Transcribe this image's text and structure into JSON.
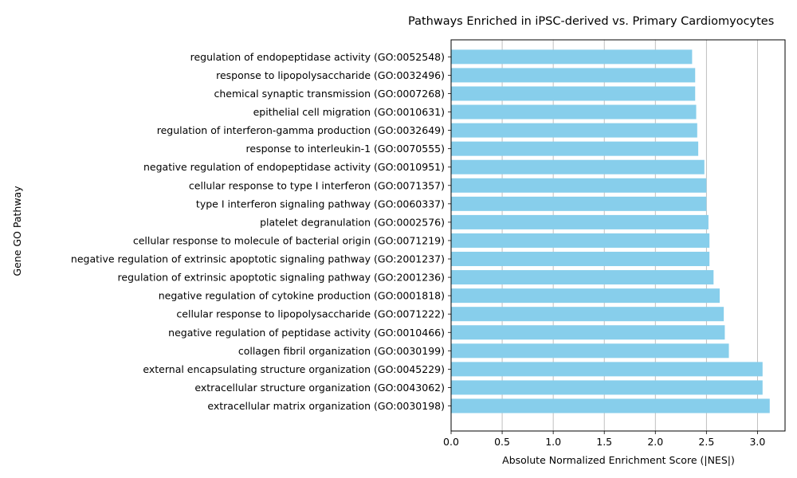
{
  "chart_data": {
    "type": "bar",
    "orientation": "horizontal",
    "title": "Pathways Enriched in iPSC-derived vs. Primary Cardiomyocytes",
    "xlabel": "Absolute Normalized Enrichment Score (|NES|)",
    "ylabel": "Gene GO Pathway",
    "xlim": [
      0,
      3.27
    ],
    "xticks": [
      "0.0",
      "0.5",
      "1.0",
      "1.5",
      "2.0",
      "2.5",
      "3.0"
    ],
    "grid": "x-axis vertical gridlines",
    "bar_color": "#87ceeb",
    "categories": [
      "extracellular matrix organization (GO:0030198)",
      "extracellular structure organization (GO:0043062)",
      "external encapsulating structure organization (GO:0045229)",
      "collagen fibril organization (GO:0030199)",
      "negative regulation of peptidase activity (GO:0010466)",
      "cellular response to lipopolysaccharide (GO:0071222)",
      "negative regulation of cytokine production (GO:0001818)",
      "regulation of extrinsic apoptotic signaling pathway (GO:2001236)",
      "negative regulation of extrinsic apoptotic signaling pathway (GO:2001237)",
      "cellular response to molecule of bacterial origin (GO:0071219)",
      "platelet degranulation (GO:0002576)",
      "type I interferon signaling pathway (GO:0060337)",
      "cellular response to type I interferon (GO:0071357)",
      "negative regulation of endopeptidase activity (GO:0010951)",
      "response to interleukin-1 (GO:0070555)",
      "regulation of interferon-gamma production (GO:0032649)",
      "epithelial cell migration (GO:0010631)",
      "chemical synaptic transmission (GO:0007268)",
      "response to lipopolysaccharide (GO:0032496)",
      "regulation of endopeptidase activity (GO:0052548)"
    ],
    "values": [
      3.12,
      3.05,
      3.05,
      2.72,
      2.68,
      2.67,
      2.63,
      2.57,
      2.53,
      2.53,
      2.52,
      2.5,
      2.5,
      2.48,
      2.42,
      2.41,
      2.4,
      2.39,
      2.39,
      2.36
    ]
  }
}
